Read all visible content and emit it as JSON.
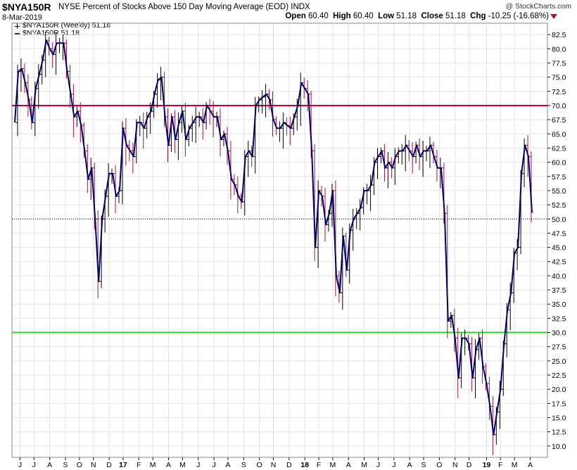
{
  "header": {
    "symbol": "$NYA150R",
    "description": "NYSE Percent of Stocks Above 150 Day Moving Average (EOD) INDX",
    "date": "8-Mar-2019",
    "credit": "@ StockCharts.com",
    "open_label": "Open",
    "open": "60.40",
    "high_label": "High",
    "high": "60.40",
    "low_label": "Low",
    "low": "51.18",
    "close_label": "Close",
    "close": "51.18",
    "chg_label": "Chg",
    "chg": "-10.25 (-16.68%)"
  },
  "legend": {
    "item1": "$NYA150R (Weekly) 51.18",
    "item2": "$NYA150R 51.18"
  },
  "colors": {
    "line": "#000066",
    "bar_up": "#000000",
    "bar_down": "#a01444",
    "hline_red": "#c8003c",
    "hline_green": "#22dd22",
    "grid": "#e2e2e2"
  },
  "chart_data": {
    "type": "line",
    "ylim": [
      8,
      84.5
    ],
    "yticks": [
      "82.5",
      "80.0",
      "77.5",
      "75.0",
      "72.5",
      "70.0",
      "67.5",
      "65.0",
      "62.5",
      "60.0",
      "57.5",
      "55.0",
      "52.5",
      "50.0",
      "47.5",
      "45.0",
      "42.5",
      "40.0",
      "37.5",
      "35.0",
      "32.5",
      "30.0",
      "27.5",
      "25.0",
      "22.5",
      "20.0",
      "17.5",
      "15.0",
      "12.5",
      "10.0"
    ],
    "xticks": [
      {
        "label": "J",
        "idx": 1.5,
        "bold": false
      },
      {
        "label": "J",
        "idx": 5.5,
        "bold": false
      },
      {
        "label": "A",
        "idx": 10,
        "bold": false
      },
      {
        "label": "S",
        "idx": 14.5,
        "bold": false
      },
      {
        "label": "O",
        "idx": 18.5,
        "bold": false
      },
      {
        "label": "N",
        "idx": 22.5,
        "bold": false
      },
      {
        "label": "D",
        "idx": 27,
        "bold": false
      },
      {
        "label": "17",
        "idx": 31,
        "bold": true
      },
      {
        "label": "F",
        "idx": 35.5,
        "bold": false
      },
      {
        "label": "M",
        "idx": 39.5,
        "bold": false
      },
      {
        "label": "A",
        "idx": 44,
        "bold": false
      },
      {
        "label": "M",
        "idx": 48,
        "bold": false
      },
      {
        "label": "J",
        "idx": 52.5,
        "bold": false
      },
      {
        "label": "J",
        "idx": 57,
        "bold": false
      },
      {
        "label": "A",
        "idx": 61,
        "bold": false
      },
      {
        "label": "S",
        "idx": 65.5,
        "bold": false
      },
      {
        "label": "O",
        "idx": 70,
        "bold": false
      },
      {
        "label": "N",
        "idx": 74,
        "bold": false
      },
      {
        "label": "D",
        "idx": 78.5,
        "bold": false
      },
      {
        "label": "18",
        "idx": 83,
        "bold": true
      },
      {
        "label": "F",
        "idx": 87,
        "bold": false
      },
      {
        "label": "M",
        "idx": 91,
        "bold": false
      },
      {
        "label": "A",
        "idx": 95.5,
        "bold": false
      },
      {
        "label": "M",
        "idx": 100,
        "bold": false
      },
      {
        "label": "J",
        "idx": 104,
        "bold": false
      },
      {
        "label": "J",
        "idx": 108.5,
        "bold": false
      },
      {
        "label": "A",
        "idx": 113,
        "bold": false
      },
      {
        "label": "S",
        "idx": 117,
        "bold": false
      },
      {
        "label": "O",
        "idx": 121.5,
        "bold": false
      },
      {
        "label": "N",
        "idx": 126,
        "bold": false
      },
      {
        "label": "D",
        "idx": 130,
        "bold": false
      },
      {
        "label": "19",
        "idx": 135,
        "bold": true
      },
      {
        "label": "F",
        "idx": 139,
        "bold": false
      },
      {
        "label": "M",
        "idx": 143,
        "bold": false
      },
      {
        "label": "A",
        "idx": 147.5,
        "bold": false
      }
    ],
    "hlines": [
      {
        "value": 70,
        "style": "red"
      },
      {
        "value": 30,
        "style": "green"
      },
      {
        "value": 50,
        "style": "dotted"
      }
    ],
    "series": [
      {
        "values": [
          67,
          76,
          76.5,
          74,
          71,
          67,
          73,
          75.5,
          78,
          81.5,
          80,
          79,
          81,
          81,
          81,
          76,
          72,
          68,
          69,
          66.5,
          62,
          57,
          59,
          50,
          39,
          50,
          54,
          58,
          58,
          54,
          55,
          66,
          63,
          62,
          61,
          67,
          67,
          66,
          68,
          69,
          72,
          74.5,
          75,
          68,
          63,
          68,
          64,
          67,
          69,
          64,
          66,
          67,
          68,
          68,
          67,
          70,
          69,
          68,
          68,
          64,
          65,
          62,
          57,
          56,
          54,
          53,
          61,
          62,
          61,
          70,
          71,
          71.5,
          72,
          71,
          67.5,
          66,
          66,
          67,
          66.5,
          66,
          68,
          70,
          74,
          73,
          72,
          62,
          45,
          55,
          54,
          49,
          51,
          55,
          40,
          37,
          47,
          41,
          48,
          50,
          51,
          52,
          55,
          55,
          56,
          60,
          61,
          62,
          59,
          60,
          59,
          61,
          62,
          62,
          63,
          62,
          61,
          63,
          61,
          62,
          62,
          63,
          61,
          59,
          59,
          51,
          32,
          33,
          29,
          22,
          29,
          29,
          28,
          22,
          27,
          29,
          24,
          21,
          17,
          12,
          16,
          20,
          28,
          34,
          37,
          44,
          45,
          58,
          63,
          61,
          51.18
        ]
      }
    ]
  }
}
